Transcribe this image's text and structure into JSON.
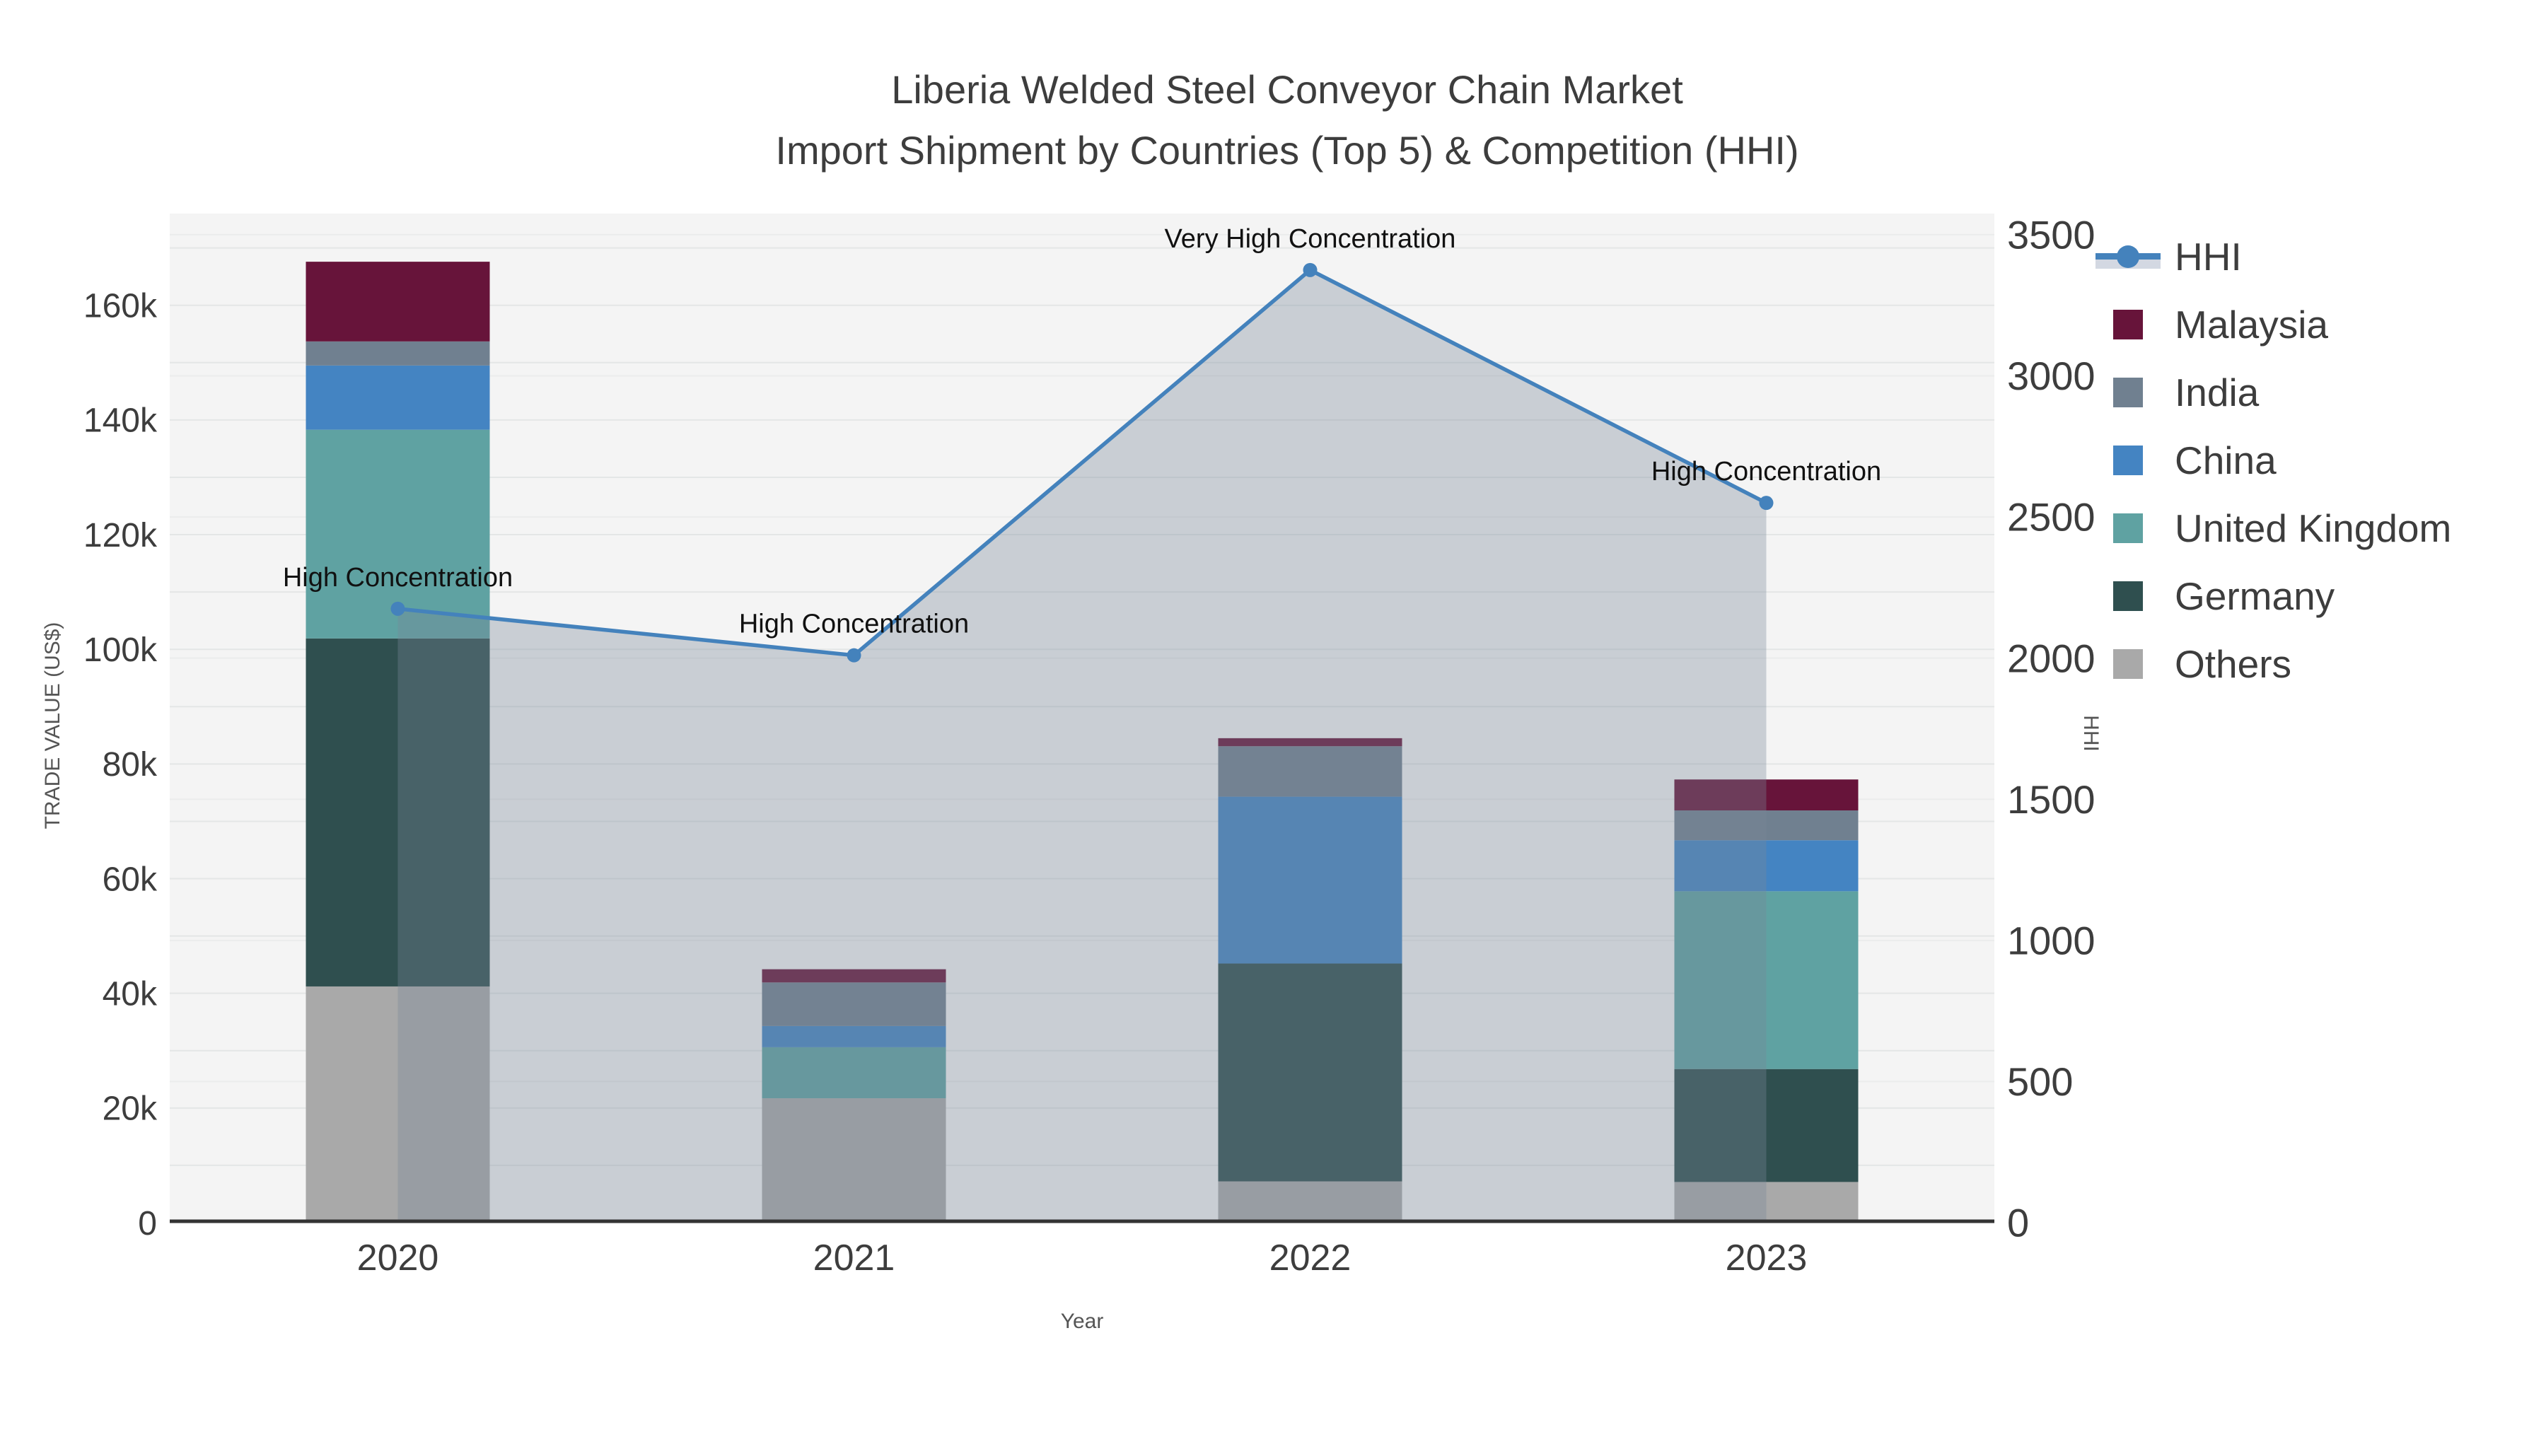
{
  "title": {
    "line1": "Liberia Welded Steel Conveyor Chain Market",
    "line2": "Import Shipment by Countries (Top 5) & Competition (HHI)"
  },
  "chart_data": {
    "type": "combo_stacked_bar_line",
    "categories": [
      "2020",
      "2021",
      "2022",
      "2023"
    ],
    "xlabel": "Year",
    "yaxis_left": {
      "title": "TRADE VALUE (US$)",
      "max": 176000,
      "grid_step": 10000,
      "ticks": [
        {
          "label": "0",
          "value": 0
        },
        {
          "label": "20k",
          "value": 20000
        },
        {
          "label": "40k",
          "value": 40000
        },
        {
          "label": "60k",
          "value": 60000
        },
        {
          "label": "80k",
          "value": 80000
        },
        {
          "label": "100k",
          "value": 100000
        },
        {
          "label": "120k",
          "value": 120000
        },
        {
          "label": "140k",
          "value": 140000
        },
        {
          "label": "160k",
          "value": 160000
        }
      ]
    },
    "yaxis_right": {
      "title": "HHI",
      "max": 3575,
      "grid_step": 500,
      "ticks": [
        {
          "label": "0",
          "value": 0
        },
        {
          "label": "500",
          "value": 500
        },
        {
          "label": "1000",
          "value": 1000
        },
        {
          "label": "1500",
          "value": 1500
        },
        {
          "label": "2000",
          "value": 2000
        },
        {
          "label": "2500",
          "value": 2500
        },
        {
          "label": "3000",
          "value": 3000
        },
        {
          "label": "3500",
          "value": 3500
        }
      ]
    },
    "series": [
      {
        "name": "Malaysia",
        "values": [
          13900,
          2300,
          1400,
          5400
        ]
      },
      {
        "name": "India",
        "values": [
          4200,
          7600,
          8800,
          5200
        ]
      },
      {
        "name": "China",
        "values": [
          11200,
          3700,
          29100,
          8900
        ]
      },
      {
        "name": "United Kingdom",
        "values": [
          36400,
          8900,
          0,
          31000
        ]
      },
      {
        "name": "Germany",
        "values": [
          60700,
          0,
          38000,
          19700
        ]
      },
      {
        "name": "Others",
        "values": [
          41200,
          21700,
          7200,
          7100
        ]
      }
    ],
    "stack_order": [
      "Others",
      "Germany",
      "United Kingdom",
      "China",
      "India",
      "Malaysia"
    ],
    "line_series": {
      "name": "HHI",
      "values": [
        2175,
        2010,
        3375,
        2550
      ]
    },
    "annotations": [
      {
        "x": "2020",
        "text": "High Concentration"
      },
      {
        "x": "2021",
        "text": "High Concentration"
      },
      {
        "x": "2022",
        "text": "Very High Concentration"
      },
      {
        "x": "2023",
        "text": "High Concentration"
      }
    ],
    "legend": [
      "HHI",
      "Malaysia",
      "India",
      "China",
      "United Kingdom",
      "Germany",
      "Others"
    ],
    "colors": {
      "HHI": "#4482bc",
      "Malaysia": "#67143a",
      "India": "#708090",
      "China": "#4484c2",
      "United Kingdom": "#5fa2a2",
      "Germany": "#2f4f4f",
      "Others": "#a9a9a9",
      "area_fill": "rgba(119,136,153,0.35)",
      "plot_bg": "#f4f4f4",
      "grid_left": "#e4e6e6",
      "grid_right": "#ebecec",
      "axis_line": "#333333",
      "annotation_text": "#111111",
      "tick_text": "#3d3d3d"
    }
  }
}
